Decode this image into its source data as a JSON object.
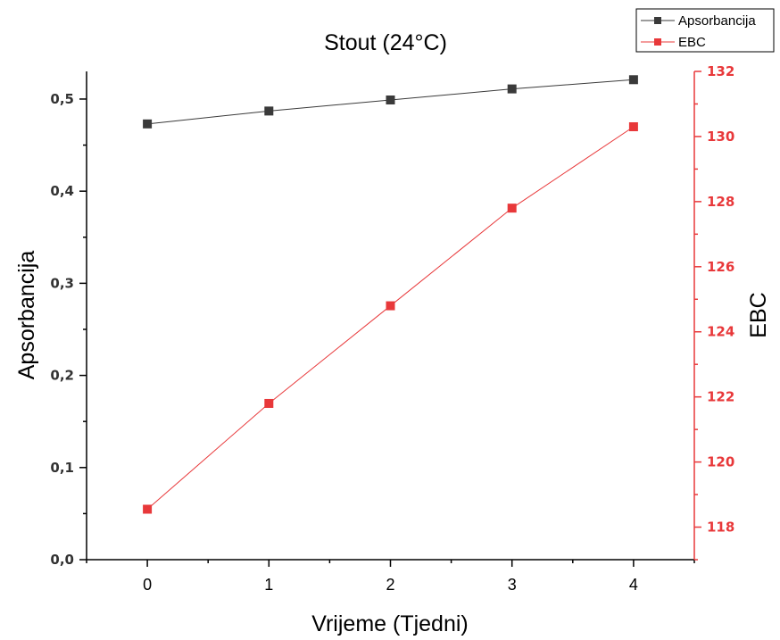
{
  "chart_data": {
    "type": "line",
    "title": "Stout (24°C)",
    "xlabel": "Vrijeme (Tjedni)",
    "ylabel": "Apsorbancija",
    "y2label": "EBC",
    "x": [
      0,
      1,
      2,
      3,
      4
    ],
    "xlim": [
      -0.5,
      4.5
    ],
    "ylim": [
      0,
      0.53
    ],
    "y2lim": [
      117,
      132
    ],
    "x_ticks": [
      "0",
      "1",
      "2",
      "3",
      "4"
    ],
    "y_ticks": [
      "0,0",
      "0,1",
      "0,2",
      "0,3",
      "0,4",
      "0,5"
    ],
    "y2_ticks": [
      "118",
      "120",
      "122",
      "124",
      "126",
      "128",
      "130",
      "132"
    ],
    "legend_position": "top-right",
    "grid": false,
    "series": [
      {
        "name": "Apsorbancija",
        "axis": "left",
        "color": "#3a3a3a",
        "marker": "square",
        "values": [
          0.473,
          0.487,
          0.499,
          0.511,
          0.521
        ]
      },
      {
        "name": "EBC",
        "axis": "right",
        "color": "#e8383a",
        "marker": "square",
        "values": [
          118.55,
          121.8,
          124.8,
          127.8,
          130.3
        ]
      }
    ]
  }
}
